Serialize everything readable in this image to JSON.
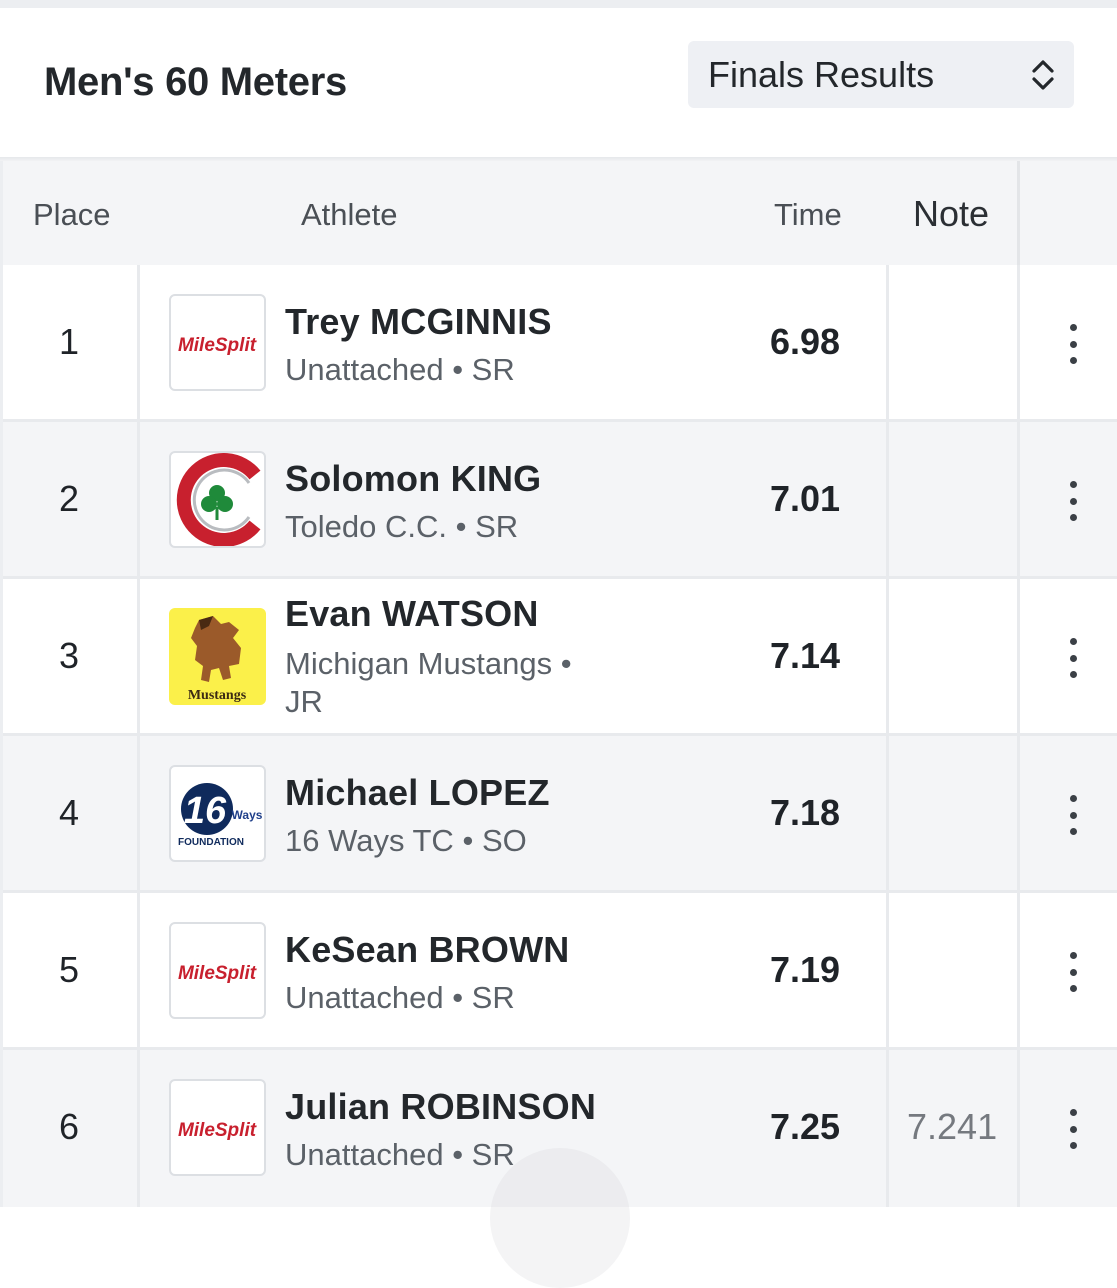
{
  "header": {
    "event_title": "Men's 60 Meters",
    "round_select": {
      "selected": "Finals Results",
      "icon": "updown-chevron-icon"
    }
  },
  "table": {
    "columns": {
      "place": "Place",
      "athlete": "Athlete",
      "time": "Time",
      "note": "Note"
    },
    "rows": [
      {
        "place": "1",
        "name": "Trey MCGINNIS",
        "team": "Unattached",
        "grade": "SR",
        "time": "6.98",
        "note": "",
        "logo": "milesplit-logo"
      },
      {
        "place": "2",
        "name": "Solomon KING",
        "team": "Toledo C.C.",
        "grade": "SR",
        "time": "7.01",
        "note": "",
        "logo": "toledo-cc-logo"
      },
      {
        "place": "3",
        "name": "Evan WATSON",
        "team": "Michigan Mustangs",
        "grade": "JR",
        "time": "7.14",
        "note": "",
        "logo": "mustangs-logo"
      },
      {
        "place": "4",
        "name": "Michael LOPEZ",
        "team": "16 Ways TC",
        "grade": "SO",
        "time": "7.18",
        "note": "",
        "logo": "16-ways-logo"
      },
      {
        "place": "5",
        "name": "KeSean BROWN",
        "team": "Unattached",
        "grade": "SR",
        "time": "7.19",
        "note": "",
        "logo": "milesplit-logo"
      },
      {
        "place": "6",
        "name": "Julian ROBINSON",
        "team": "Unattached",
        "grade": "SR",
        "time": "7.25",
        "note": "7.241",
        "logo": "milesplit-logo"
      }
    ]
  },
  "logo_text": {
    "milesplit": "MileSplit",
    "mustangs": "Mustangs",
    "ways_number": "16",
    "ways_word": "Ways",
    "ways_foundation": "FOUNDATION"
  },
  "colors": {
    "accent_red": "#c8202e",
    "header_bg": "#f4f5f7",
    "select_bg": "#eef0f4"
  },
  "separator": "•"
}
